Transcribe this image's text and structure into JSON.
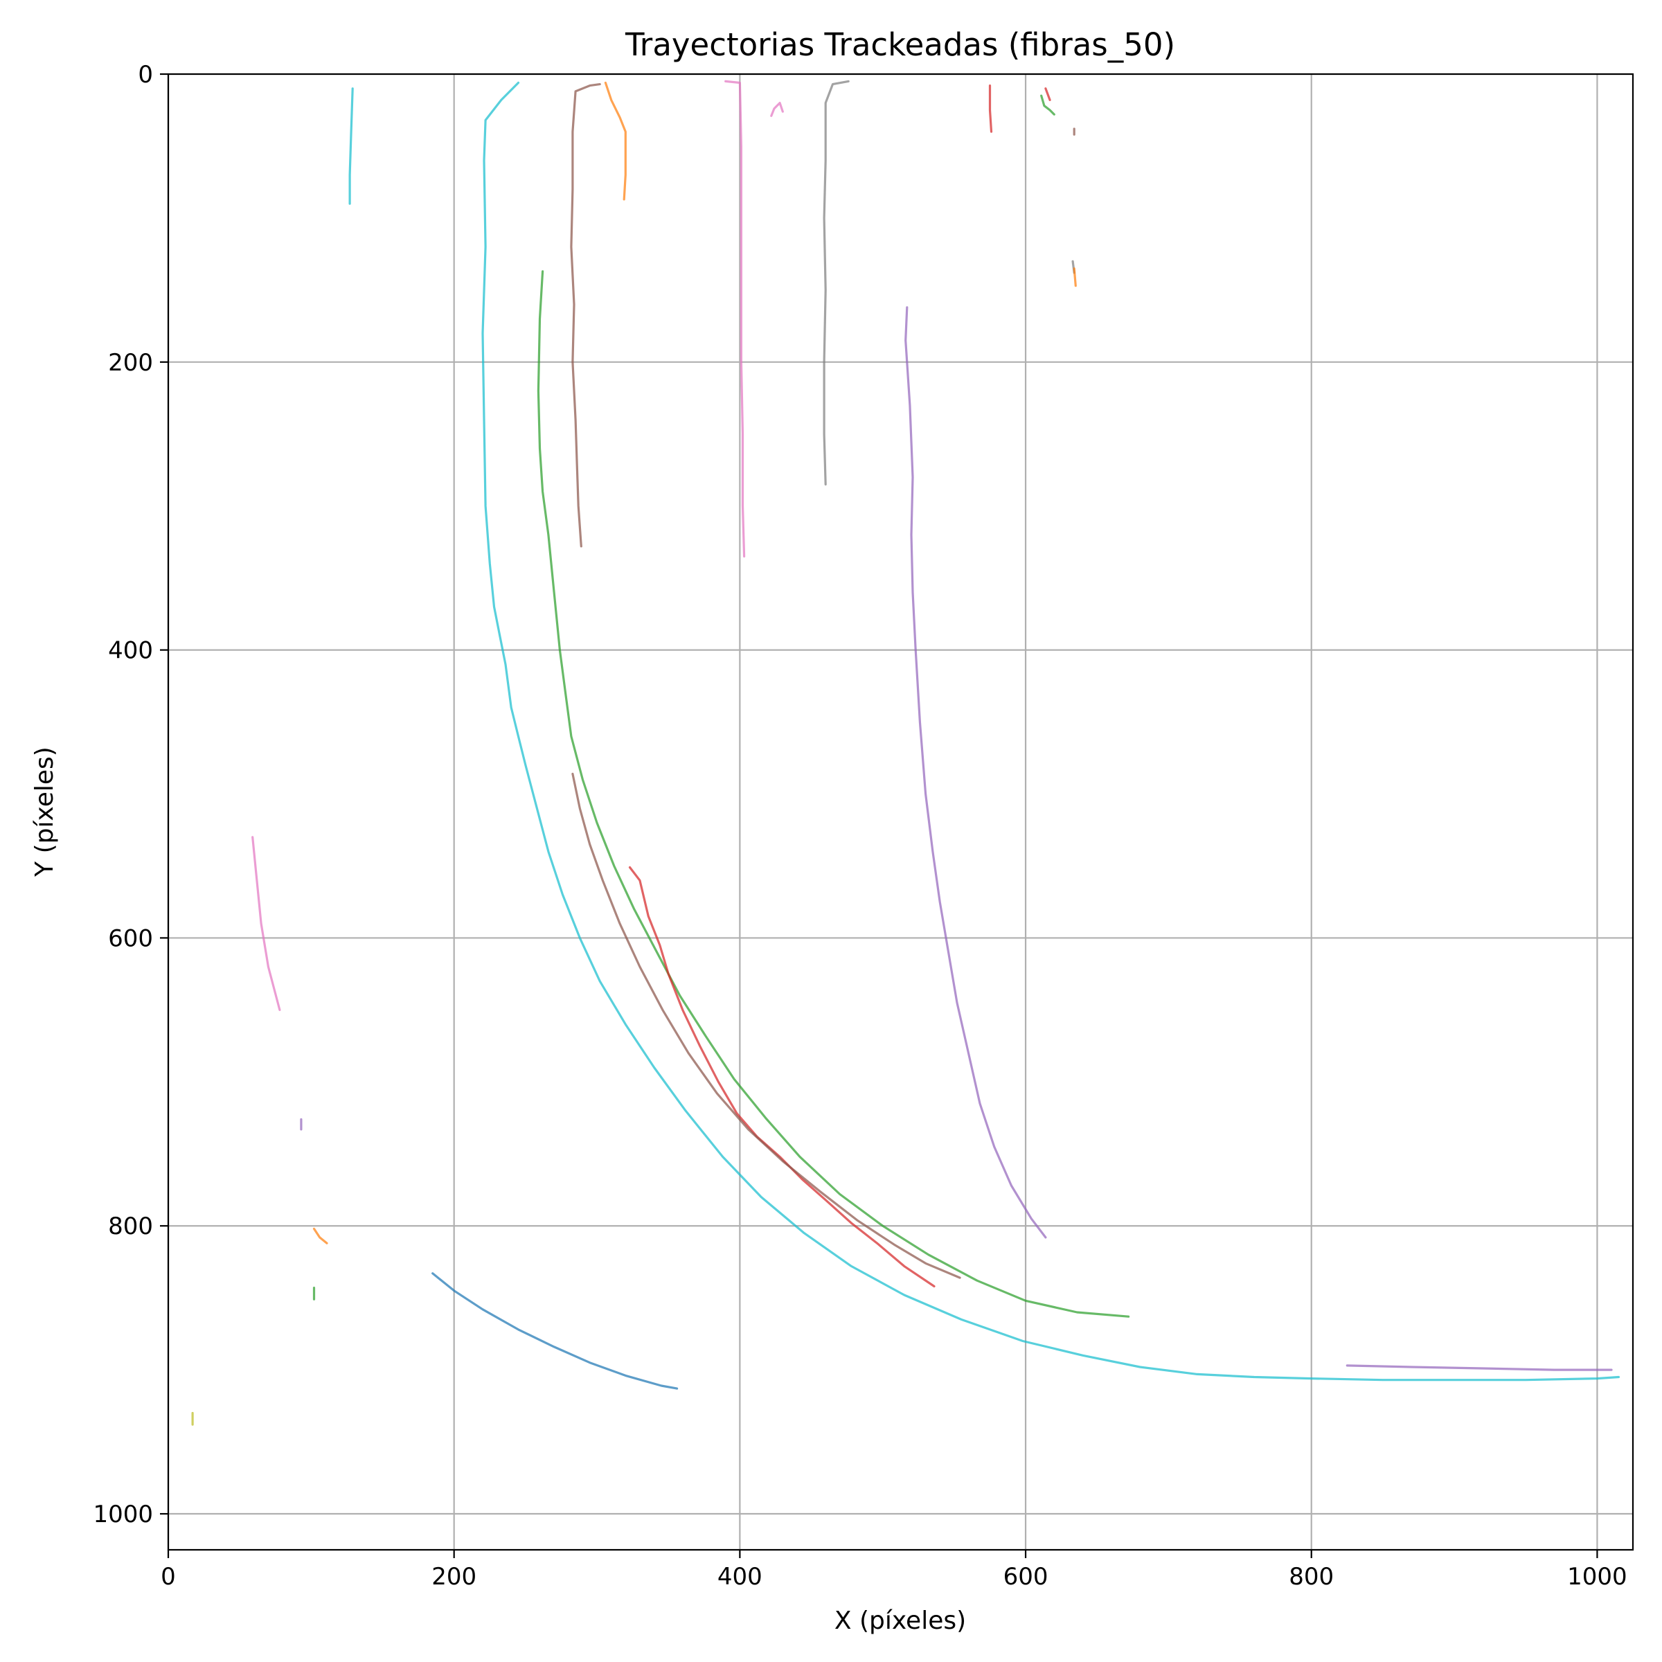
{
  "chart_data": {
    "type": "line",
    "title": "Trayectorias Trackeadas (fibras_50)",
    "xlabel": "X (píxeles)",
    "ylabel": "Y (píxeles)",
    "xlim": [
      0,
      1025
    ],
    "ylim": [
      1025,
      0
    ],
    "y_inverted": true,
    "grid": true,
    "xticks": [
      "0",
      "200",
      "400",
      "600",
      "800",
      "1000"
    ],
    "yticks": [
      "0",
      "200",
      "400",
      "600",
      "800",
      "1000"
    ],
    "xtick_values": [
      0,
      200,
      400,
      600,
      800,
      1000
    ],
    "ytick_values": [
      0,
      200,
      400,
      600,
      800,
      1000
    ],
    "series": [
      {
        "color": "#17becf",
        "points": [
          [
            245,
            6
          ],
          [
            233,
            18
          ],
          [
            222,
            32
          ],
          [
            221,
            60
          ],
          [
            222,
            120
          ],
          [
            220,
            180
          ],
          [
            221,
            240
          ],
          [
            222,
            300
          ],
          [
            225,
            340
          ],
          [
            228,
            370
          ],
          [
            232,
            390
          ],
          [
            236,
            410
          ],
          [
            240,
            440
          ],
          [
            245,
            460
          ],
          [
            250,
            480
          ],
          [
            258,
            510
          ],
          [
            266,
            540
          ],
          [
            276,
            570
          ],
          [
            288,
            600
          ],
          [
            302,
            630
          ],
          [
            320,
            660
          ],
          [
            340,
            690
          ],
          [
            362,
            720
          ],
          [
            388,
            752
          ],
          [
            415,
            780
          ],
          [
            445,
            805
          ],
          [
            478,
            828
          ],
          [
            515,
            848
          ],
          [
            555,
            865
          ],
          [
            598,
            880
          ],
          [
            640,
            890
          ],
          [
            680,
            898
          ],
          [
            720,
            903
          ],
          [
            760,
            905
          ],
          [
            800,
            906
          ],
          [
            850,
            907
          ],
          [
            900,
            907
          ],
          [
            950,
            907
          ],
          [
            1000,
            906
          ],
          [
            1015,
            905
          ]
        ]
      },
      {
        "color": "#2ca02c",
        "points": [
          [
            262,
            137
          ],
          [
            260,
            170
          ],
          [
            259,
            220
          ],
          [
            260,
            260
          ],
          [
            262,
            290
          ],
          [
            266,
            320
          ],
          [
            270,
            360
          ],
          [
            274,
            400
          ],
          [
            278,
            430
          ],
          [
            282,
            460
          ],
          [
            290,
            490
          ],
          [
            300,
            520
          ],
          [
            312,
            550
          ],
          [
            326,
            580
          ],
          [
            342,
            610
          ],
          [
            358,
            640
          ],
          [
            376,
            668
          ],
          [
            396,
            698
          ],
          [
            418,
            725
          ],
          [
            442,
            752
          ],
          [
            470,
            778
          ],
          [
            500,
            800
          ],
          [
            532,
            820
          ],
          [
            566,
            838
          ],
          [
            600,
            852
          ],
          [
            636,
            860
          ],
          [
            672,
            863
          ]
        ]
      },
      {
        "color": "#d62728",
        "points": [
          [
            323,
            551
          ],
          [
            330,
            560
          ],
          [
            336,
            585
          ],
          [
            344,
            605
          ],
          [
            350,
            625
          ],
          [
            360,
            650
          ],
          [
            372,
            675
          ],
          [
            385,
            700
          ],
          [
            398,
            722
          ],
          [
            412,
            738
          ],
          [
            428,
            752
          ],
          [
            444,
            768
          ],
          [
            460,
            782
          ],
          [
            478,
            798
          ],
          [
            496,
            812
          ],
          [
            515,
            828
          ],
          [
            536,
            842
          ]
        ]
      },
      {
        "color": "#8c564b",
        "points": [
          [
            283,
            486
          ],
          [
            288,
            510
          ],
          [
            295,
            535
          ],
          [
            304,
            560
          ],
          [
            316,
            590
          ],
          [
            330,
            620
          ],
          [
            346,
            650
          ],
          [
            364,
            680
          ],
          [
            384,
            708
          ],
          [
            406,
            733
          ],
          [
            430,
            755
          ],
          [
            456,
            776
          ],
          [
            482,
            796
          ],
          [
            508,
            813
          ],
          [
            530,
            826
          ],
          [
            554,
            836
          ]
        ]
      },
      {
        "color": "#9467bd",
        "points": [
          [
            517,
            162
          ],
          [
            516,
            185
          ],
          [
            519,
            230
          ],
          [
            521,
            280
          ],
          [
            520,
            320
          ],
          [
            521,
            360
          ],
          [
            523,
            400
          ],
          [
            526,
            450
          ],
          [
            530,
            500
          ],
          [
            535,
            540
          ],
          [
            540,
            575
          ],
          [
            546,
            610
          ],
          [
            552,
            645
          ],
          [
            560,
            680
          ],
          [
            568,
            715
          ],
          [
            578,
            745
          ],
          [
            590,
            772
          ],
          [
            604,
            795
          ],
          [
            614,
            808
          ]
        ]
      },
      {
        "color": "#9467bd",
        "points": [
          [
            825,
            897
          ],
          [
            870,
            898
          ],
          [
            920,
            899
          ],
          [
            970,
            900
          ],
          [
            1010,
            900
          ]
        ]
      },
      {
        "color": "#1f77b4",
        "points": [
          [
            185,
            833
          ],
          [
            200,
            845
          ],
          [
            220,
            858
          ],
          [
            245,
            872
          ],
          [
            270,
            884
          ],
          [
            295,
            895
          ],
          [
            320,
            904
          ],
          [
            345,
            911
          ],
          [
            356,
            913
          ]
        ]
      },
      {
        "color": "#8c564b",
        "points": [
          [
            302,
            7
          ],
          [
            295,
            8
          ],
          [
            285,
            12
          ],
          [
            283,
            40
          ],
          [
            283,
            80
          ],
          [
            282,
            120
          ],
          [
            284,
            160
          ],
          [
            283,
            200
          ],
          [
            285,
            240
          ],
          [
            286,
            270
          ],
          [
            287,
            300
          ],
          [
            289,
            328
          ]
        ]
      },
      {
        "color": "#ff7f0e",
        "points": [
          [
            306,
            6
          ],
          [
            310,
            18
          ],
          [
            316,
            30
          ],
          [
            320,
            40
          ],
          [
            320,
            70
          ],
          [
            319,
            87
          ]
        ]
      },
      {
        "color": "#e377c2",
        "points": [
          [
            390,
            5
          ],
          [
            400,
            6
          ],
          [
            401,
            50
          ],
          [
            401,
            100
          ],
          [
            401,
            150
          ],
          [
            401,
            200
          ],
          [
            402,
            250
          ],
          [
            402,
            300
          ],
          [
            403,
            335
          ]
        ]
      },
      {
        "color": "#e377c2",
        "points": [
          [
            422,
            29
          ],
          [
            424,
            24
          ],
          [
            428,
            20
          ],
          [
            430,
            26
          ]
        ]
      },
      {
        "color": "#7f7f7f",
        "points": [
          [
            476,
            5
          ],
          [
            465,
            7
          ],
          [
            460,
            20
          ],
          [
            460,
            60
          ],
          [
            459,
            100
          ],
          [
            460,
            150
          ],
          [
            459,
            200
          ],
          [
            459,
            250
          ],
          [
            460,
            285
          ]
        ]
      },
      {
        "color": "#17becf",
        "points": [
          [
            129,
            10
          ],
          [
            128,
            40
          ],
          [
            127,
            70
          ],
          [
            127,
            90
          ]
        ]
      },
      {
        "color": "#d62728",
        "points": [
          [
            575,
            8
          ],
          [
            575,
            25
          ],
          [
            576,
            40
          ]
        ]
      },
      {
        "color": "#2ca02c",
        "points": [
          [
            611,
            15
          ],
          [
            613,
            22
          ],
          [
            617,
            25
          ],
          [
            620,
            28
          ]
        ]
      },
      {
        "color": "#d62728",
        "points": [
          [
            614,
            10
          ],
          [
            617,
            18
          ]
        ]
      },
      {
        "color": "#8c564b",
        "points": [
          [
            634,
            38
          ],
          [
            634,
            42
          ]
        ]
      },
      {
        "color": "#7f7f7f",
        "points": [
          [
            633,
            130
          ],
          [
            634,
            138
          ]
        ]
      },
      {
        "color": "#ff7f0e",
        "points": [
          [
            634,
            135
          ],
          [
            635,
            147
          ]
        ]
      },
      {
        "color": "#e377c2",
        "points": [
          [
            59,
            530
          ],
          [
            62,
            560
          ],
          [
            65,
            590
          ],
          [
            70,
            620
          ],
          [
            78,
            650
          ]
        ]
      },
      {
        "color": "#9467bd",
        "points": [
          [
            93,
            726
          ],
          [
            93,
            733
          ]
        ]
      },
      {
        "color": "#ff7f0e",
        "points": [
          [
            102,
            802
          ],
          [
            106,
            808
          ],
          [
            111,
            812
          ]
        ]
      },
      {
        "color": "#2ca02c",
        "points": [
          [
            102,
            843
          ],
          [
            102,
            851
          ]
        ]
      },
      {
        "color": "#bcbd22",
        "points": [
          [
            17,
            930
          ],
          [
            17,
            938
          ]
        ]
      }
    ]
  }
}
